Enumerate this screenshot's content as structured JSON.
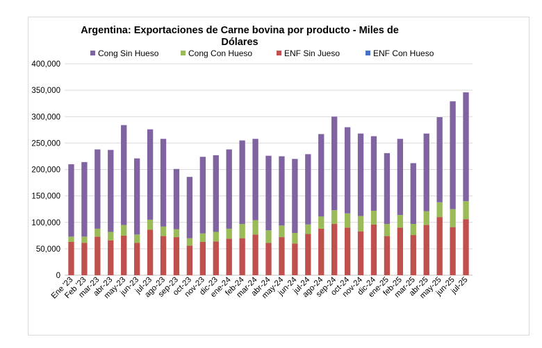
{
  "chart_data": {
    "type": "bar",
    "stacked": true,
    "title": "Argentina: Exportaciones de Carne bovina por producto - Miles de Dólares",
    "xlabel": "",
    "ylabel": "",
    "ylim": [
      0,
      400000
    ],
    "yticks": [
      "0",
      "50,000",
      "100,000",
      "150,000",
      "200,000",
      "250,000",
      "300,000",
      "350,000",
      "400,000"
    ],
    "legend_position": "top",
    "categories": [
      "Ene '23",
      "Feb '23",
      "mar-23",
      "abr-23",
      "may-23",
      "jun-23",
      "jul-23",
      "ago-23",
      "sep-23",
      "oct-23",
      "nov-23",
      "dic-23",
      "ene-24",
      "feb-24",
      "mar-24",
      "abr-24",
      "may-24",
      "jun-24",
      "jul-24",
      "ago-24",
      "sep-24",
      "oct-24",
      "nov-24",
      "dic-24",
      "ene-25",
      "feb-25",
      "mar-25",
      "abr-25",
      "may-25",
      "jun-25",
      "jul-25"
    ],
    "series": [
      {
        "name": "ENF Con Hueso",
        "color": "#4472c4",
        "values": [
          0,
          0,
          0,
          0,
          0,
          0,
          0,
          0,
          0,
          0,
          0,
          0,
          0,
          0,
          0,
          0,
          0,
          0,
          0,
          0,
          0,
          0,
          0,
          0,
          0,
          0,
          0,
          0,
          0,
          0,
          0
        ]
      },
      {
        "name": "ENF Sin Jueso",
        "color": "#c0504d",
        "values": [
          63000,
          61000,
          73000,
          66000,
          75000,
          61000,
          86000,
          74000,
          72000,
          56000,
          63000,
          64000,
          69000,
          70000,
          77000,
          61000,
          72000,
          60000,
          78000,
          88000,
          97000,
          90000,
          83000,
          96000,
          74000,
          90000,
          76000,
          95000,
          110000,
          91000,
          106000
        ]
      },
      {
        "name": "Cong Con Hueso",
        "color": "#9bbb59",
        "values": [
          10000,
          12000,
          15000,
          16000,
          20000,
          16000,
          19000,
          18000,
          15000,
          14000,
          16000,
          18000,
          19000,
          27000,
          27000,
          24000,
          22000,
          20000,
          18000,
          23000,
          26000,
          27000,
          29000,
          26000,
          23000,
          24000,
          21000,
          26000,
          28000,
          34000,
          34000
        ]
      },
      {
        "name": "Cong Sin Hueso",
        "color": "#8064a2",
        "values": [
          137000,
          141000,
          150000,
          155000,
          189000,
          144000,
          171000,
          166000,
          114000,
          116000,
          145000,
          145000,
          150000,
          158000,
          154000,
          141000,
          131000,
          140000,
          133000,
          156000,
          177000,
          163000,
          156000,
          141000,
          134000,
          144000,
          115000,
          147000,
          161000,
          204000,
          206000
        ]
      }
    ]
  },
  "title_lines": [
    "Argentina: Exportaciones de Carne bovina por producto - Miles de",
    "Dólares"
  ],
  "legend": [
    {
      "label": "Cong Sin Hueso",
      "color": "#8064a2"
    },
    {
      "label": "Cong Con Hueso",
      "color": "#9bbb59"
    },
    {
      "label": "ENF Sin Jueso",
      "color": "#c0504d"
    },
    {
      "label": "ENF Con Hueso",
      "color": "#4472c4"
    }
  ]
}
